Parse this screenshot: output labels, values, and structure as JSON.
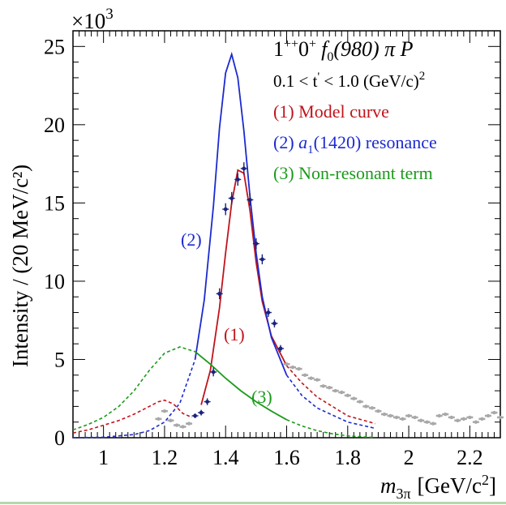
{
  "chart_data": {
    "type": "line",
    "multiplier": "×10",
    "multiplier_exp": "3",
    "xlabel_main": "m",
    "xlabel_sub": "3π",
    "xlabel_units": "[GeV/c",
    "xlabel_units_sup": "2",
    "xlabel_units_close": "]",
    "ylabel": "Intensity / (20 MeV/c²)",
    "xlim": [
      0.9,
      2.3
    ],
    "ylim": [
      0,
      26000
    ],
    "x_ticks": [
      "1",
      "1.2",
      "1.4",
      "1.6",
      "1.8",
      "2",
      "2.2"
    ],
    "y_ticks": [
      "0",
      "5",
      "10",
      "15",
      "20",
      "25"
    ],
    "legend": {
      "wave_a": "1",
      "wave_sup1": "++",
      "wave_b": "0",
      "wave_sup2": "+",
      "wave_c": "f",
      "wave_sub": "0",
      "wave_d": "(980) π P",
      "tcut_a": "0.1 < t",
      "tcut_prime": "'",
      "tcut_b": " < 1.0 (GeV/c)",
      "tcut_sup": "2",
      "entry1": "(1) Model curve",
      "entry2_a": "(2) ",
      "entry2_b": "a",
      "entry2_sub": "1",
      "entry2_c": "(1420) resonance",
      "entry3": "(3) Non-resonant term"
    },
    "annotations": {
      "label1": "(1)",
      "label2": "(2)",
      "label3": "(3)"
    },
    "colors": {
      "model": "#c0141c",
      "resonance": "#1c2ad0",
      "nonres": "#1c9a1c",
      "data": "#1a237e",
      "extra": "#a8a8a8"
    },
    "series": [
      {
        "name": "(1) Model curve",
        "fit_range": [
          1.3,
          1.6
        ],
        "x": [
          0.9,
          0.95,
          1.0,
          1.05,
          1.1,
          1.15,
          1.18,
          1.2,
          1.23,
          1.26,
          1.29,
          1.32,
          1.35,
          1.38,
          1.4,
          1.42,
          1.44,
          1.46,
          1.48,
          1.5,
          1.52,
          1.55,
          1.6,
          1.65,
          1.7,
          1.8,
          1.89
        ],
        "y": [
          300,
          500,
          800,
          1100,
          1500,
          2000,
          2300,
          2400,
          2150,
          1550,
          1300,
          2100,
          4300,
          8300,
          11800,
          15000,
          17100,
          16900,
          14500,
          11200,
          8700,
          6500,
          4600,
          3500,
          2600,
          1400,
          900
        ]
      },
      {
        "name": "(2) a1(1420) resonance",
        "fit_range": [
          1.3,
          1.6
        ],
        "x": [
          0.9,
          1.0,
          1.1,
          1.15,
          1.2,
          1.25,
          1.3,
          1.33,
          1.36,
          1.38,
          1.4,
          1.42,
          1.44,
          1.46,
          1.48,
          1.5,
          1.52,
          1.55,
          1.6,
          1.65,
          1.7,
          1.8,
          1.89
        ],
        "y": [
          0,
          30,
          200,
          450,
          1000,
          2200,
          5000,
          8800,
          14800,
          19800,
          23300,
          24500,
          23000,
          19600,
          15400,
          11800,
          9000,
          6400,
          4000,
          2700,
          1900,
          1000,
          600
        ]
      },
      {
        "name": "(3) Non-resonant term",
        "fit_range": [
          1.3,
          1.6
        ],
        "x": [
          0.9,
          0.95,
          1.0,
          1.05,
          1.1,
          1.15,
          1.2,
          1.25,
          1.3,
          1.35,
          1.4,
          1.45,
          1.5,
          1.55,
          1.6,
          1.65,
          1.7,
          1.75,
          1.8,
          1.85,
          1.89
        ],
        "y": [
          500,
          850,
          1300,
          2000,
          3000,
          4300,
          5400,
          5800,
          5500,
          4700,
          3800,
          3000,
          2300,
          1700,
          1150,
          750,
          450,
          250,
          120,
          50,
          20
        ]
      }
    ],
    "data_points": {
      "x": [
        1.3,
        1.32,
        1.34,
        1.36,
        1.38,
        1.4,
        1.42,
        1.44,
        1.46,
        1.48,
        1.5,
        1.52,
        1.54,
        1.56,
        1.58
      ],
      "y": [
        1400,
        1600,
        2300,
        4200,
        9200,
        14600,
        15300,
        16500,
        17200,
        15200,
        12400,
        11400,
        8000,
        7300,
        5700
      ],
      "err": [
        150,
        180,
        220,
        280,
        350,
        380,
        400,
        400,
        400,
        380,
        350,
        320,
        280,
        250,
        220
      ]
    },
    "extra_points": {
      "x": [
        1.18,
        1.2,
        1.22,
        1.24,
        1.26,
        1.28,
        1.6,
        1.62,
        1.64,
        1.66,
        1.68,
        1.7,
        1.72,
        1.74,
        1.76,
        1.78,
        1.8,
        1.82,
        1.84,
        1.86,
        1.88,
        1.9,
        1.92,
        1.94,
        1.96,
        1.98,
        2.0,
        2.02,
        2.04,
        2.06,
        2.08,
        2.1,
        2.12,
        2.14,
        2.16,
        2.18,
        2.2,
        2.22,
        2.24,
        2.26,
        2.28,
        2.3
      ],
      "y": [
        1200,
        1700,
        1100,
        800,
        700,
        900,
        4700,
        4500,
        4400,
        4000,
        3800,
        3700,
        3300,
        3200,
        3000,
        2900,
        2700,
        2500,
        2300,
        2000,
        1900,
        1700,
        1500,
        1400,
        1300,
        1200,
        1400,
        1300,
        1100,
        1000,
        900,
        1400,
        1500,
        1300,
        1100,
        1200,
        1300,
        1000,
        1200,
        1400,
        1600,
        1300
      ]
    }
  }
}
